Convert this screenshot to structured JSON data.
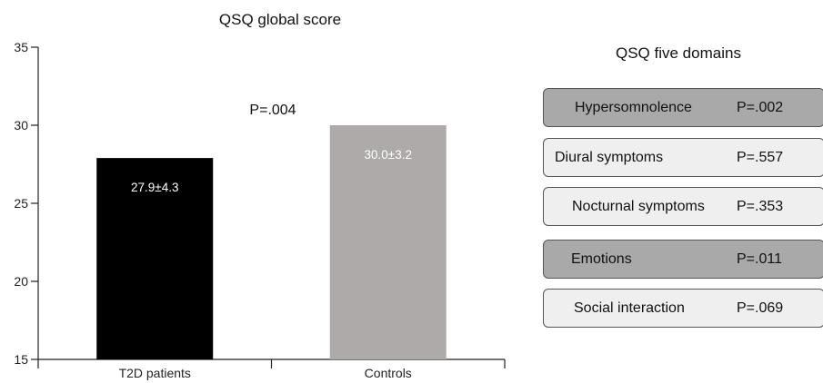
{
  "chart_data": [
    {
      "type": "bar",
      "title": "QSQ global score",
      "categories": [
        "T2D patients",
        "Controls"
      ],
      "values": [
        27.9,
        30.0
      ],
      "bar_labels": [
        "27.9±4.3",
        "30.0±3.2"
      ],
      "bar_colors": [
        "#000000",
        "#aeaaa9"
      ],
      "annotation": "P=.004",
      "ylim": [
        15,
        35
      ],
      "yticks": [
        15,
        20,
        25,
        30,
        35
      ],
      "xlabel": "",
      "ylabel": "",
      "grid": false
    },
    {
      "type": "table",
      "title": "QSQ five domains",
      "rows": [
        {
          "domain": "Hypersomnolence",
          "p": "P=.002",
          "highlight": true
        },
        {
          "domain": "Diural symptoms",
          "p": "P=.557",
          "highlight": false
        },
        {
          "domain": "Nocturnal symptoms",
          "p": "P=.353",
          "highlight": false
        },
        {
          "domain": "Emotions",
          "p": "P=.011",
          "highlight": true
        },
        {
          "domain": "Social interaction",
          "p": "P=.069",
          "highlight": false
        }
      ]
    }
  ]
}
